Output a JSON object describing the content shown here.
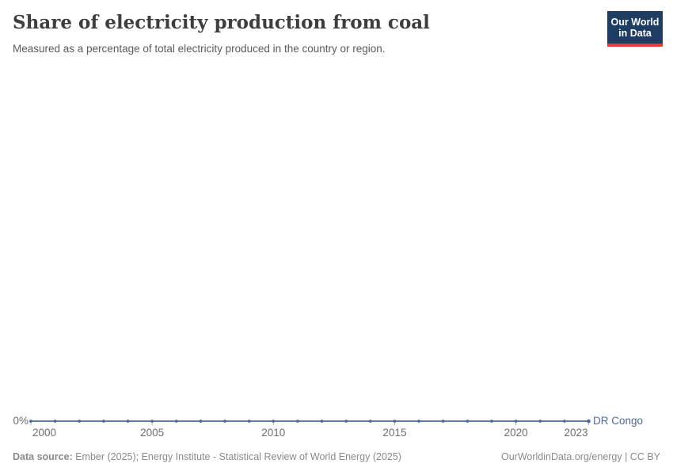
{
  "header": {
    "title": "Share of electricity production from coal",
    "subtitle": "Measured as a percentage of total electricity produced in the country or region.",
    "logo": {
      "line1": "Our World",
      "line2": "in Data"
    }
  },
  "chart": {
    "y_zero_label": "0%",
    "entity_label": "DR Congo"
  },
  "chart_data": {
    "type": "line",
    "title": "Share of electricity production from coal",
    "xlabel": "",
    "ylabel": "",
    "unit": "%",
    "x": [
      2000,
      2001,
      2002,
      2003,
      2004,
      2005,
      2006,
      2007,
      2008,
      2009,
      2010,
      2011,
      2012,
      2013,
      2014,
      2015,
      2016,
      2017,
      2018,
      2019,
      2020,
      2021,
      2022,
      2023
    ],
    "series": [
      {
        "name": "DR Congo",
        "color": "#4c6a9c",
        "values": [
          0,
          0,
          0,
          0,
          0,
          0,
          0,
          0,
          0,
          0,
          0,
          0,
          0,
          0,
          0,
          0,
          0,
          0,
          0,
          0,
          0,
          0,
          0,
          0
        ]
      }
    ],
    "x_ticks": [
      2000,
      2005,
      2010,
      2015,
      2020,
      2023
    ],
    "y_ticks": [
      "0%"
    ],
    "grid": "off",
    "legend_position": "end-of-line-label",
    "markers": "circle-every-year"
  },
  "footer": {
    "data_source_label": "Data source:",
    "data_source_text": "Ember (2025); Energy Institute - Statistical Review of World Energy (2025)",
    "right_text": "OurWorldinData.org/energy | CC BY"
  },
  "colors": {
    "line": "#4c6a9c",
    "tick": "#a3aebf",
    "logo_bg": "#1d3d63",
    "logo_bar": "#e63e36"
  }
}
